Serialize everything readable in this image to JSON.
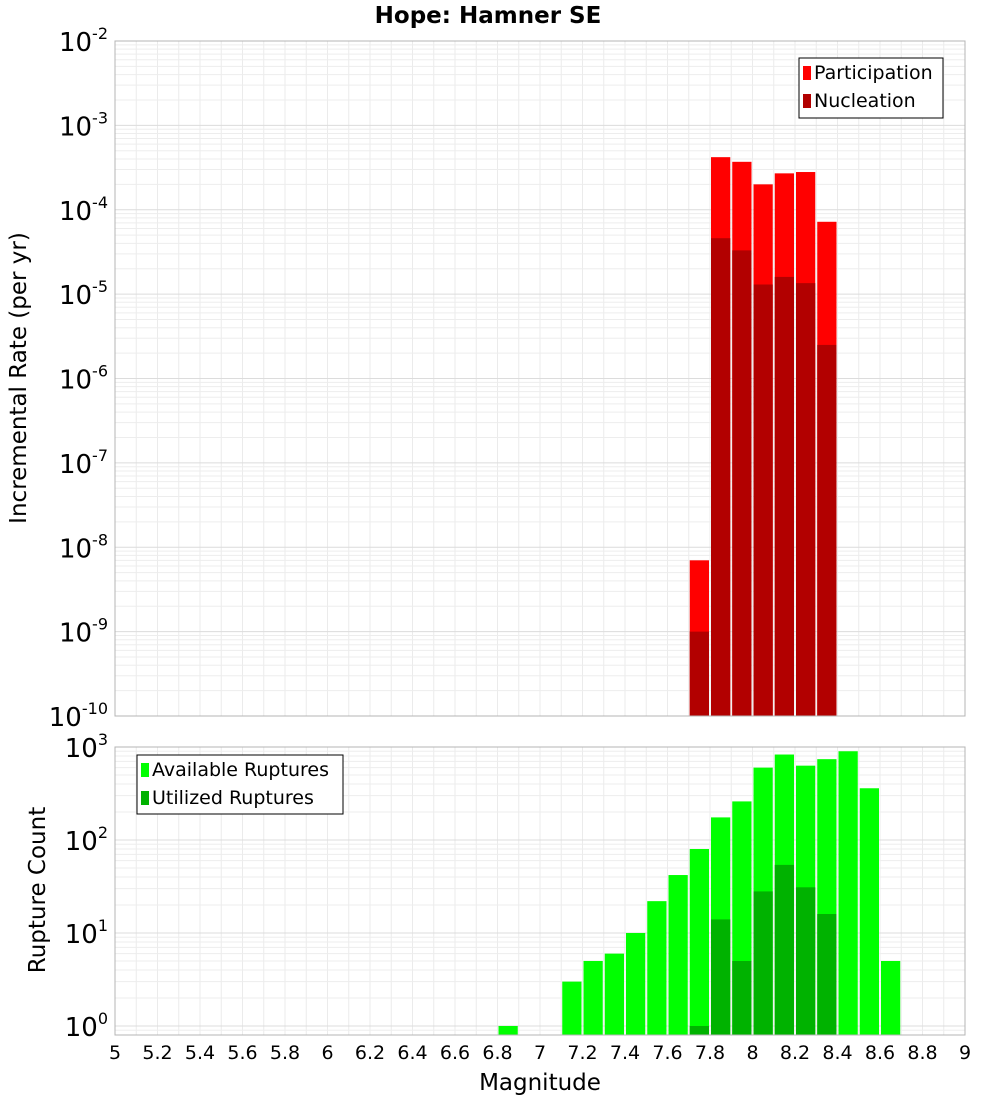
{
  "chart_data": [
    {
      "type": "bar",
      "title": "Hope: Hamner SE",
      "ylabel": "Incremental Rate (per yr)",
      "yscale": "log",
      "ylim": [
        1e-10,
        0.01
      ],
      "xlim": [
        5,
        9
      ],
      "bin_width": 0.1,
      "grid": true,
      "legend_position": "top-right",
      "y_tick_exponents": [
        -10,
        -9,
        -8,
        -7,
        -6,
        -5,
        -4,
        -3,
        -2
      ],
      "series": [
        {
          "name": "Participation",
          "color": "#ff0000",
          "x": [
            7.75,
            7.85,
            7.95,
            8.05,
            8.15,
            8.25,
            8.35
          ],
          "values": [
            7e-09,
            0.00042,
            0.00037,
            0.0002,
            0.00027,
            0.00028,
            7.2e-05
          ]
        },
        {
          "name": "Nucleation",
          "color": "#b20000",
          "x": [
            7.75,
            7.85,
            7.95,
            8.05,
            8.15,
            8.25,
            8.35
          ],
          "values": [
            1e-09,
            4.6e-05,
            3.3e-05,
            1.3e-05,
            1.6e-05,
            1.35e-05,
            2.5e-06
          ]
        }
      ]
    },
    {
      "type": "bar",
      "xlabel": "Magnitude",
      "ylabel": "Rupture Count",
      "yscale": "log",
      "ylim": [
        0.8,
        1000
      ],
      "xlim": [
        5,
        9
      ],
      "bin_width": 0.1,
      "grid": true,
      "legend_position": "top-left",
      "y_tick_exponents": [
        0,
        1,
        2,
        3
      ],
      "x_ticks": [
        "5",
        "5.2",
        "5.4",
        "5.6",
        "5.8",
        "6",
        "6.2",
        "6.4",
        "6.6",
        "6.8",
        "7",
        "7.2",
        "7.4",
        "7.6",
        "7.8",
        "8",
        "8.2",
        "8.4",
        "8.6",
        "8.8",
        "9"
      ],
      "series": [
        {
          "name": "Available Ruptures",
          "color": "#00ff00",
          "x": [
            6.85,
            7.15,
            7.25,
            7.35,
            7.45,
            7.55,
            7.65,
            7.75,
            7.85,
            7.95,
            8.05,
            8.15,
            8.25,
            8.35,
            8.45,
            8.55,
            8.65
          ],
          "values": [
            1,
            3,
            5,
            6,
            10,
            22,
            42,
            80,
            175,
            260,
            600,
            830,
            630,
            740,
            900,
            360,
            5
          ]
        },
        {
          "name": "Utilized Ruptures",
          "color": "#00b200",
          "x": [
            7.75,
            7.85,
            7.95,
            8.05,
            8.15,
            8.25,
            8.35
          ],
          "values": [
            1,
            14,
            5,
            28,
            54,
            31,
            16
          ]
        }
      ]
    }
  ]
}
